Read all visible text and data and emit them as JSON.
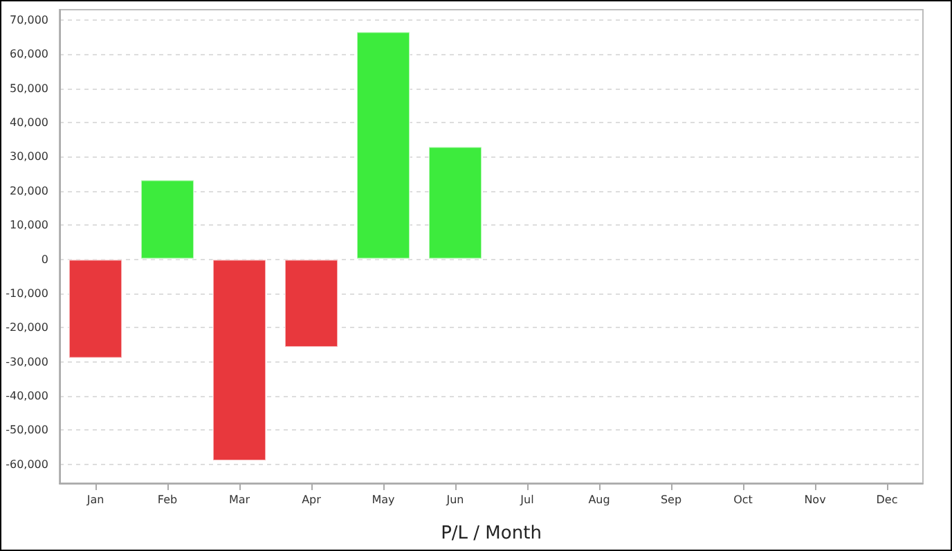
{
  "chart_data": {
    "type": "bar",
    "xlabel": "P/L / Month",
    "categories": [
      "Jan",
      "Feb",
      "Mar",
      "Apr",
      "May",
      "Jun",
      "Jul",
      "Aug",
      "Sep",
      "Oct",
      "Nov",
      "Dec"
    ],
    "values": [
      -29000,
      23300,
      -59000,
      -25800,
      66600,
      33000,
      null,
      null,
      null,
      null,
      null,
      null
    ],
    "colors": [
      "#e8383d",
      "#3deb3d",
      "#e8383d",
      "#e8383d",
      "#3deb3d",
      "#3deb3d",
      "#e8383d",
      "#e8383d",
      "#e8383d",
      "#e8383d",
      "#e8383d",
      "#e8383d"
    ],
    "ylim": [
      -65500,
      73000
    ],
    "yticks": [
      {
        "value": -60000,
        "label": "-60,000"
      },
      {
        "value": -50000,
        "label": "-50,000"
      },
      {
        "value": -40000,
        "label": "-40,000"
      },
      {
        "value": -30000,
        "label": "-30,000"
      },
      {
        "value": -20000,
        "label": "-20,000"
      },
      {
        "value": -10000,
        "label": "-10,000"
      },
      0,
      {
        "value": 10000,
        "label": "10,000"
      },
      {
        "value": 20000,
        "label": "20,000"
      },
      {
        "value": 30000,
        "label": "30,000"
      },
      {
        "value": 40000,
        "label": "40,000"
      },
      {
        "value": 50000,
        "label": "50,000"
      },
      {
        "value": 60000,
        "label": "60,000"
      },
      {
        "value": 70000,
        "label": "70,000"
      }
    ],
    "grid": "y"
  }
}
